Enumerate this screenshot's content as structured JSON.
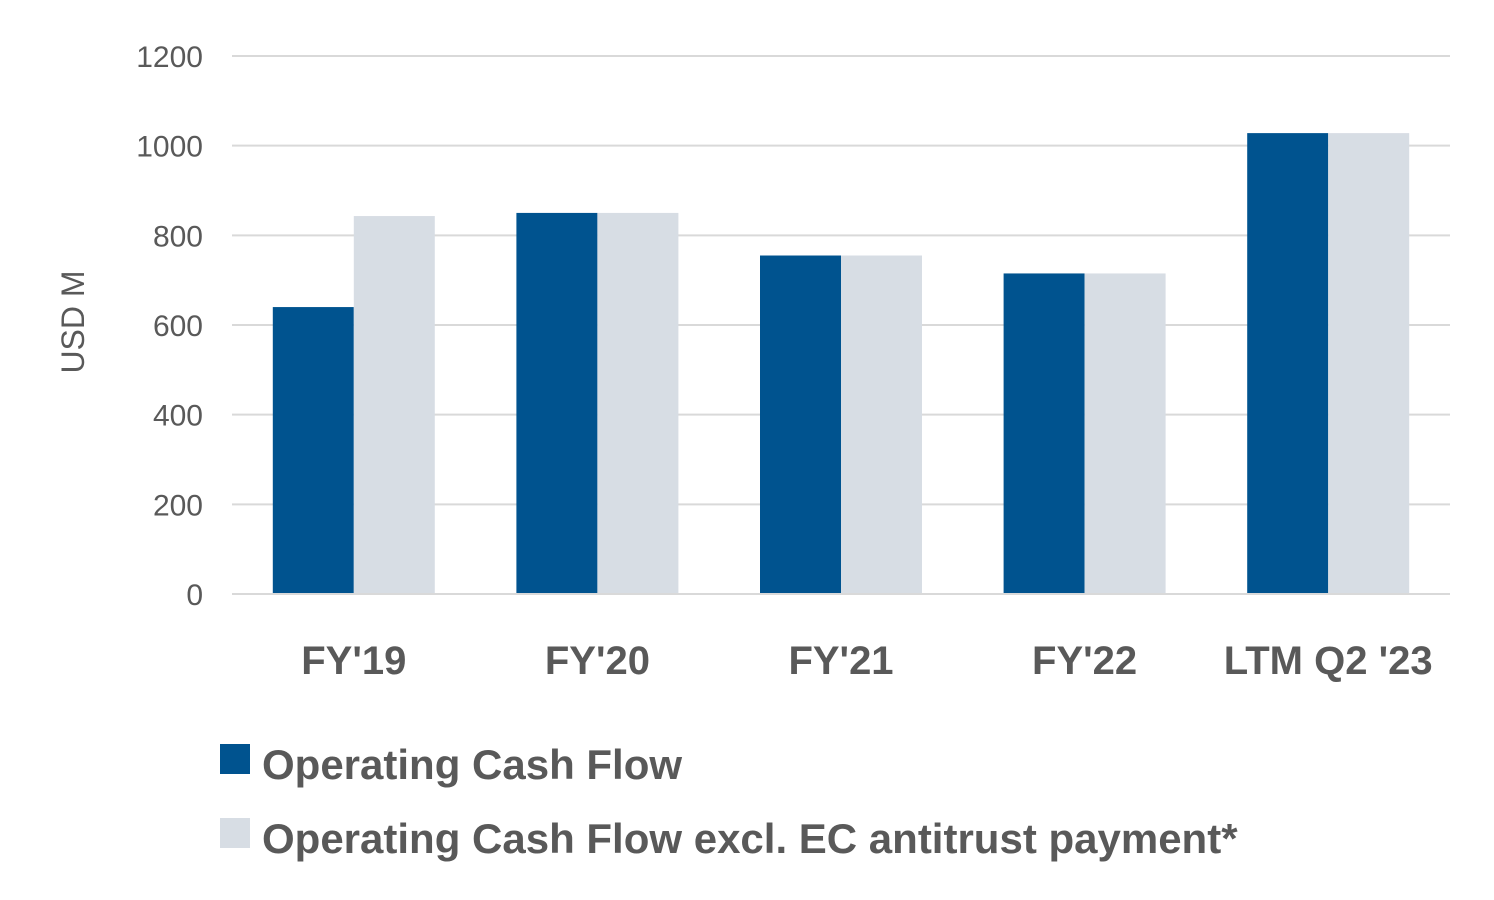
{
  "chart_data": {
    "type": "bar",
    "title": "",
    "xlabel": "",
    "ylabel": "USD M",
    "ylim": [
      0,
      1200
    ],
    "yticks": [
      "0",
      "200",
      "400",
      "600",
      "800",
      "1000",
      "1200"
    ],
    "grid": true,
    "legend_position": "bottom",
    "categories": [
      "FY'19",
      "FY'20",
      "FY'21",
      "FY'22",
      "LTM Q2 '23"
    ],
    "series": [
      {
        "name": "Operating Cash Flow",
        "color": "#00538f",
        "values": [
          640,
          850,
          755,
          715,
          1028
        ]
      },
      {
        "name": "Operating Cash Flow excl. EC antitrust payment*",
        "color": "#d7dde4",
        "values": [
          843,
          850,
          755,
          715,
          1028
        ]
      }
    ]
  }
}
